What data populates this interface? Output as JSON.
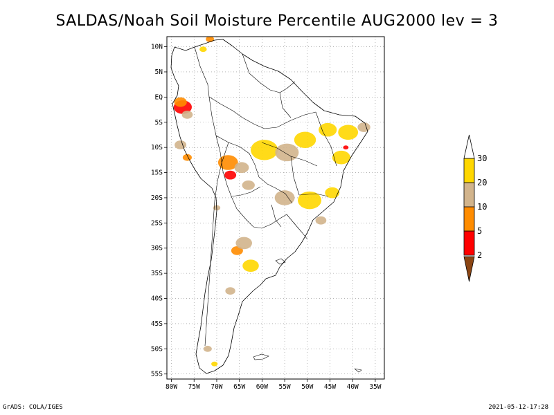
{
  "title": "SALDAS/Noah Soil Moisture Percentile AUG2000 lev = 3",
  "footer": {
    "left": "GrADS: COLA/IGES",
    "right": "2021-05-12-17:28"
  },
  "chart_data": {
    "type": "heatmap",
    "title": "SALDAS/Noah Soil Moisture Percentile AUG2000 lev = 3",
    "region": "South America",
    "lon_range": [
      -81,
      -33
    ],
    "lat_range": [
      -56,
      12
    ],
    "x_ticks": [
      {
        "value": -80,
        "label": "80W"
      },
      {
        "value": -75,
        "label": "75W"
      },
      {
        "value": -70,
        "label": "70W"
      },
      {
        "value": -65,
        "label": "65W"
      },
      {
        "value": -60,
        "label": "60W"
      },
      {
        "value": -55,
        "label": "55W"
      },
      {
        "value": -50,
        "label": "50W"
      },
      {
        "value": -45,
        "label": "45W"
      },
      {
        "value": -40,
        "label": "40W"
      },
      {
        "value": -35,
        "label": "35W"
      }
    ],
    "y_ticks": [
      {
        "value": 10,
        "label": "10N"
      },
      {
        "value": 5,
        "label": "5N"
      },
      {
        "value": 0,
        "label": "EQ"
      },
      {
        "value": -5,
        "label": "5S"
      },
      {
        "value": -10,
        "label": "10S"
      },
      {
        "value": -15,
        "label": "15S"
      },
      {
        "value": -20,
        "label": "20S"
      },
      {
        "value": -25,
        "label": "25S"
      },
      {
        "value": -30,
        "label": "30S"
      },
      {
        "value": -35,
        "label": "35S"
      },
      {
        "value": -40,
        "label": "40S"
      },
      {
        "value": -45,
        "label": "45S"
      },
      {
        "value": -50,
        "label": "50S"
      },
      {
        "value": -55,
        "label": "55S"
      }
    ],
    "grid": true,
    "colorbar": {
      "placement": "right",
      "levels": [
        "2",
        "5",
        "10",
        "20",
        "30"
      ],
      "colors": [
        "#8b4513",
        "#ff0000",
        "#ff8c00",
        "#d2b48c",
        "#ffd700",
        "#ffffff"
      ]
    },
    "regions": [
      {
        "lon": -77.5,
        "lat": -2.0,
        "r": 2.0,
        "cat": 1
      },
      {
        "lon": -78.0,
        "lat": -1.0,
        "r": 1.4,
        "cat": 2
      },
      {
        "lon": -76.5,
        "lat": -3.5,
        "r": 1.2,
        "cat": 3
      },
      {
        "lon": -71.5,
        "lat": 11.5,
        "r": 0.9,
        "cat": 2
      },
      {
        "lon": -73.0,
        "lat": 9.5,
        "r": 0.8,
        "cat": 4
      },
      {
        "lon": -78.0,
        "lat": -9.5,
        "r": 1.3,
        "cat": 3
      },
      {
        "lon": -76.5,
        "lat": -12.0,
        "r": 1.0,
        "cat": 2
      },
      {
        "lon": -67.5,
        "lat": -13.0,
        "r": 2.2,
        "cat": 2
      },
      {
        "lon": -67.0,
        "lat": -15.5,
        "r": 1.3,
        "cat": 1
      },
      {
        "lon": -64.5,
        "lat": -14.0,
        "r": 1.6,
        "cat": 3
      },
      {
        "lon": -63.0,
        "lat": -17.5,
        "r": 1.4,
        "cat": 3
      },
      {
        "lon": -59.5,
        "lat": -10.5,
        "r": 3.0,
        "cat": 4
      },
      {
        "lon": -54.5,
        "lat": -11.0,
        "r": 2.6,
        "cat": 3
      },
      {
        "lon": -50.5,
        "lat": -8.5,
        "r": 2.4,
        "cat": 4
      },
      {
        "lon": -45.5,
        "lat": -6.5,
        "r": 2.0,
        "cat": 4
      },
      {
        "lon": -41.0,
        "lat": -7.0,
        "r": 2.2,
        "cat": 4
      },
      {
        "lon": -37.5,
        "lat": -6.0,
        "r": 1.4,
        "cat": 3
      },
      {
        "lon": -42.5,
        "lat": -12.0,
        "r": 2.0,
        "cat": 4
      },
      {
        "lon": -41.5,
        "lat": -10.0,
        "r": 0.6,
        "cat": 1
      },
      {
        "lon": -55.0,
        "lat": -20.0,
        "r": 2.2,
        "cat": 3
      },
      {
        "lon": -49.5,
        "lat": -20.5,
        "r": 2.6,
        "cat": 4
      },
      {
        "lon": -44.5,
        "lat": -19.0,
        "r": 1.6,
        "cat": 4
      },
      {
        "lon": -47.0,
        "lat": -24.5,
        "r": 1.2,
        "cat": 3
      },
      {
        "lon": -65.5,
        "lat": -30.5,
        "r": 1.3,
        "cat": 2
      },
      {
        "lon": -64.0,
        "lat": -29.0,
        "r": 1.8,
        "cat": 3
      },
      {
        "lon": -62.5,
        "lat": -33.5,
        "r": 1.8,
        "cat": 4
      },
      {
        "lon": -67.0,
        "lat": -38.5,
        "r": 1.1,
        "cat": 3
      },
      {
        "lon": -70.0,
        "lat": -22.0,
        "r": 0.8,
        "cat": 3
      },
      {
        "lon": -72.0,
        "lat": -50.0,
        "r": 0.9,
        "cat": 3
      },
      {
        "lon": -70.5,
        "lat": -53.0,
        "r": 0.7,
        "cat": 4
      }
    ]
  }
}
